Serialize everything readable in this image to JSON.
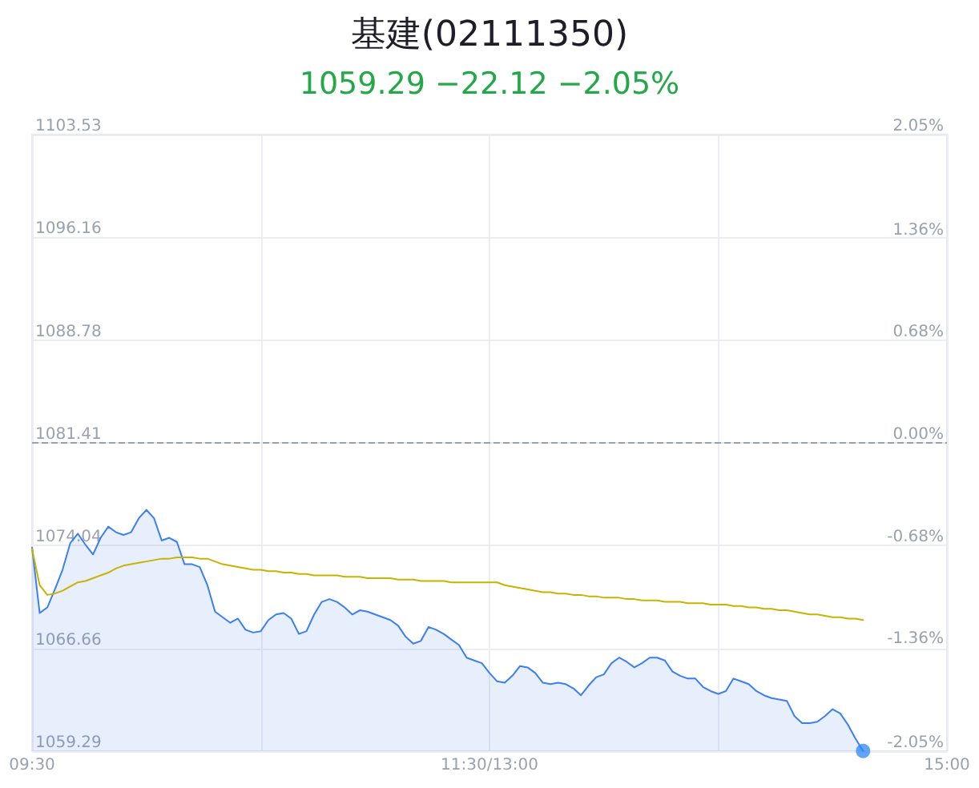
{
  "chart_data": {
    "type": "line",
    "title": "基建(02111350)",
    "subtitle": "1059.29 −22.12 −2.05%",
    "categories": [
      "09:30",
      null,
      null,
      null,
      null,
      null,
      null,
      null,
      null,
      null,
      null,
      null,
      null,
      null,
      null,
      null,
      null,
      null,
      null,
      null,
      null,
      null,
      null,
      null,
      null,
      null,
      null,
      null,
      null,
      null,
      null,
      null,
      null,
      null,
      null,
      null,
      null,
      null,
      null,
      null,
      null,
      null,
      null,
      null,
      null,
      null,
      null,
      null,
      null,
      null,
      null,
      null,
      null,
      null,
      null,
      null,
      null,
      null,
      null,
      null,
      "11:30/13:00",
      null,
      null,
      null,
      null,
      null,
      null,
      null,
      null,
      null,
      null,
      null,
      null,
      null,
      null,
      null,
      null,
      null,
      null,
      null,
      null,
      null,
      null,
      null,
      null,
      null,
      null,
      null,
      null,
      null,
      null,
      null,
      null,
      null,
      null,
      null,
      null,
      null,
      null,
      null,
      null,
      null,
      null,
      null,
      null,
      null,
      null,
      null,
      null,
      null,
      null,
      null,
      null,
      null,
      null,
      null,
      null,
      null,
      null,
      null,
      "15:00"
    ],
    "ylim": [
      1059.29,
      1103.53
    ],
    "yticks": [
      1059.29,
      1066.66,
      1074.04,
      1081.41,
      1088.78,
      1096.16,
      1103.53
    ],
    "y2lim": [
      -2.05,
      2.05
    ],
    "y2ticks": [
      {
        "value": -2.05,
        "label": "-2.05%"
      },
      {
        "value": -1.36,
        "label": "-1.36%"
      },
      {
        "value": -0.68,
        "label": "-0.68%"
      },
      {
        "value": 0,
        "label": "0.00%"
      },
      {
        "value": 0.68,
        "label": "0.68%"
      },
      {
        "value": 1.36,
        "label": "1.36%"
      },
      {
        "value": 2.05,
        "label": "2.05%"
      }
    ],
    "ref_lines": [
      {
        "axis": "y",
        "value": 1081.41,
        "label": null,
        "color": "#9a9fb5",
        "line_style": "dashed"
      }
    ],
    "grid": true,
    "marker": "none",
    "line_style": "solid",
    "series": [
      {
        "type": "area",
        "color": "#3b7ff2",
        "values": [
          1073.9,
          1069.2,
          1069.6,
          1070.9,
          1072.3,
          1074.2,
          1074.9,
          1074.1,
          1073.4,
          1074.6,
          1075.4,
          1075.0,
          1074.8,
          1075.0,
          1076.0,
          1076.6,
          1076.0,
          1074.4,
          1074.6,
          1074.3,
          1072.7,
          1072.7,
          1072.5,
          1071.2,
          1069.3,
          1068.9,
          1068.5,
          1068.8,
          1068.0,
          1067.8,
          1067.9,
          1068.7,
          1069.1,
          1069.2,
          1068.8,
          1067.7,
          1067.9,
          1069.1,
          1070.0,
          1070.2,
          1070.0,
          1069.6,
          1069.1,
          1069.4,
          1069.3,
          1069.1,
          1068.9,
          1068.7,
          1068.3,
          1067.5,
          1067.0,
          1067.2,
          1068.2,
          1068.0,
          1067.7,
          1067.3,
          1066.9,
          1066.0,
          1065.8,
          1065.6,
          1064.9,
          1064.3,
          1064.2,
          1064.7,
          1065.4,
          1065.3,
          1064.9,
          1064.2,
          1064.1,
          1064.2,
          1064.1,
          1063.8,
          1063.3,
          1064.0,
          1064.6,
          1064.8,
          1065.6,
          1066.0,
          1065.7,
          1065.3,
          1065.6,
          1066.0,
          1066.0,
          1065.8,
          1065.0,
          1064.7,
          1064.5,
          1064.5,
          1063.9,
          1063.6,
          1063.4,
          1063.6,
          1064.5,
          1064.3,
          1064.1,
          1063.6,
          1063.3,
          1063.1,
          1063.0,
          1062.9,
          1061.8,
          1061.3,
          1061.3,
          1061.4,
          1061.8,
          1062.3,
          1062.0,
          1061.2,
          1060.2,
          1059.3,
          null,
          null,
          null,
          null,
          null,
          null,
          null,
          null,
          null,
          null,
          null
        ]
      },
      {
        "type": "line",
        "color": "#c9b200",
        "values": [
          1073.8,
          1071.2,
          1070.5,
          1070.6,
          1070.8,
          1071.1,
          1071.4,
          1071.5,
          1071.7,
          1071.9,
          1072.1,
          1072.4,
          1072.6,
          1072.7,
          1072.8,
          1072.9,
          1073.0,
          1073.1,
          1073.1,
          1073.2,
          1073.2,
          1073.2,
          1073.1,
          1073.1,
          1072.9,
          1072.7,
          1072.6,
          1072.5,
          1072.4,
          1072.3,
          1072.3,
          1072.2,
          1072.2,
          1072.1,
          1072.1,
          1072.0,
          1072.0,
          1071.9,
          1071.9,
          1071.9,
          1071.9,
          1071.8,
          1071.8,
          1071.8,
          1071.7,
          1071.7,
          1071.7,
          1071.7,
          1071.6,
          1071.6,
          1071.6,
          1071.5,
          1071.5,
          1071.5,
          1071.5,
          1071.4,
          1071.4,
          1071.4,
          1071.4,
          1071.4,
          1071.4,
          1071.4,
          1071.2,
          1071.1,
          1071.0,
          1070.9,
          1070.8,
          1070.7,
          1070.7,
          1070.6,
          1070.6,
          1070.5,
          1070.5,
          1070.4,
          1070.4,
          1070.3,
          1070.3,
          1070.3,
          1070.2,
          1070.2,
          1070.1,
          1070.1,
          1070.1,
          1070.0,
          1070.0,
          1070.0,
          1069.9,
          1069.9,
          1069.9,
          1069.8,
          1069.8,
          1069.8,
          1069.7,
          1069.7,
          1069.6,
          1069.6,
          1069.5,
          1069.5,
          1069.4,
          1069.4,
          1069.3,
          1069.2,
          1069.1,
          1069.1,
          1069.0,
          1068.9,
          1068.9,
          1068.8,
          1068.8,
          1068.7,
          null,
          null,
          null,
          null,
          null,
          null,
          null,
          null,
          null,
          null,
          null
        ]
      },
      {
        "type": "scatter",
        "color": "#3a8ef6",
        "marker": "circle",
        "values": [
          null,
          null,
          null,
          null,
          null,
          null,
          null,
          null,
          null,
          null,
          null,
          null,
          null,
          null,
          null,
          null,
          null,
          null,
          null,
          null,
          null,
          null,
          null,
          null,
          null,
          null,
          null,
          null,
          null,
          null,
          null,
          null,
          null,
          null,
          null,
          null,
          null,
          null,
          null,
          null,
          null,
          null,
          null,
          null,
          null,
          null,
          null,
          null,
          null,
          null,
          null,
          null,
          null,
          null,
          null,
          null,
          null,
          null,
          null,
          null,
          null,
          null,
          null,
          null,
          null,
          null,
          null,
          null,
          null,
          null,
          null,
          null,
          null,
          null,
          null,
          null,
          null,
          null,
          null,
          null,
          null,
          null,
          null,
          null,
          null,
          null,
          null,
          null,
          null,
          null,
          null,
          null,
          null,
          null,
          null,
          null,
          null,
          null,
          null,
          null,
          null,
          null,
          null,
          null,
          null,
          null,
          null,
          null,
          null,
          1059.3,
          null,
          null,
          null,
          null,
          null,
          null,
          null,
          null,
          null,
          null,
          null
        ]
      }
    ]
  }
}
